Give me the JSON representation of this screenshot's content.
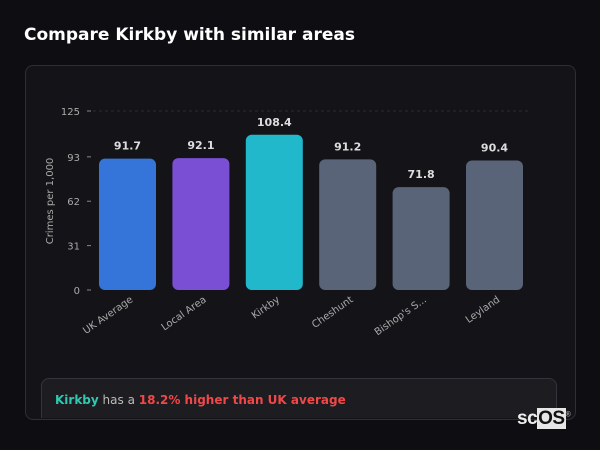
{
  "title": "Compare Kirkby with similar areas",
  "chart_data": {
    "type": "bar",
    "categories": [
      "UK Average",
      "Local Area",
      "Kirkby",
      "Cheshunt",
      "Bishop's S...",
      "Leyland"
    ],
    "values": [
      91.7,
      92.1,
      108.4,
      91.2,
      71.8,
      90.4
    ],
    "value_labels": [
      "91.7",
      "92.1",
      "108.4",
      "91.2",
      "71.8",
      "90.4"
    ],
    "colors": [
      "#3574d8",
      "#7b4fd4",
      "#22b8cc",
      "#5a6478",
      "#5a6478",
      "#5a6478"
    ],
    "ylabel": "Crimes per 1,000",
    "yticks": [
      0,
      31,
      62,
      93,
      125
    ],
    "ylim": [
      0,
      125
    ],
    "grid": false
  },
  "footer": {
    "area": "Kirkby",
    "middle": " has a ",
    "comparison": "18.2% higher than UK average"
  },
  "logo": {
    "text_a": "sc",
    "text_b": "OS",
    "mark": "®"
  }
}
